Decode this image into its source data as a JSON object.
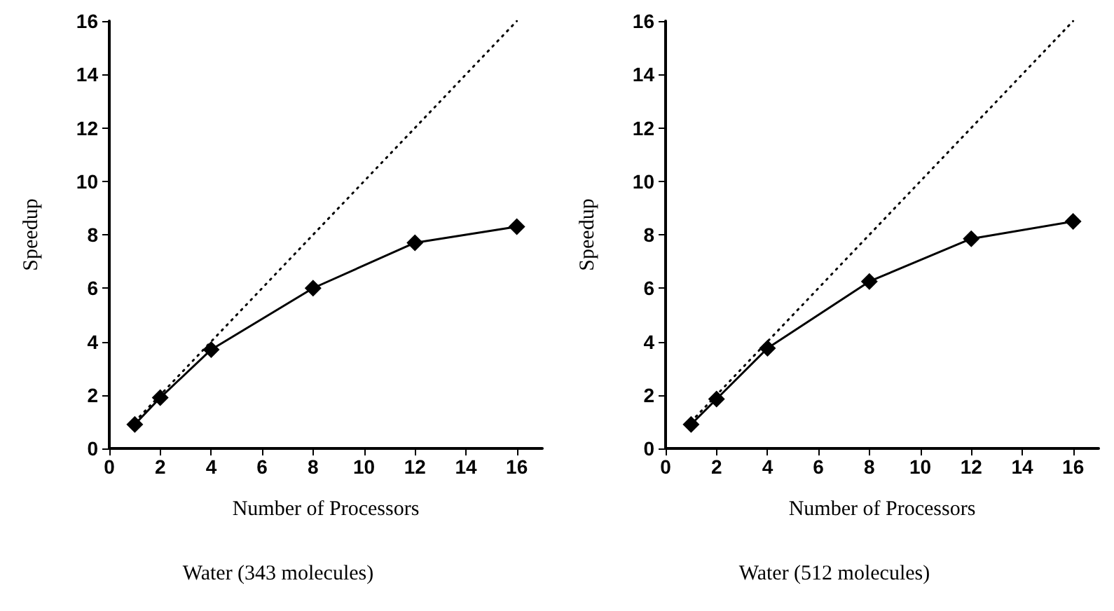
{
  "chart_data": [
    {
      "type": "line",
      "title": "Water (343 molecules)",
      "xlabel": "Number of Processors",
      "ylabel": "Speedup",
      "xlim": [
        0,
        17
      ],
      "xticks": [
        0,
        2,
        4,
        6,
        8,
        10,
        12,
        14,
        16
      ],
      "ylim": [
        0,
        16
      ],
      "yticks": [
        0,
        2,
        4,
        6,
        8,
        10,
        12,
        14,
        16
      ],
      "series": [
        {
          "color": "#000000",
          "x": [
            1,
            2,
            4,
            8,
            12,
            16
          ],
          "values": [
            0.9,
            1.9,
            3.7,
            6.0,
            7.7,
            8.3
          ],
          "marker": "diamond",
          "line_style": "solid"
        },
        {
          "color": "#000000",
          "x": [
            1,
            16
          ],
          "values": [
            1,
            16
          ],
          "marker": "none",
          "line_style": "dotted"
        }
      ]
    },
    {
      "type": "line",
      "title": "Water (512 molecules)",
      "xlabel": "Number of Processors",
      "ylabel": "Speedup",
      "xlim": [
        0,
        17
      ],
      "xticks": [
        0,
        2,
        4,
        6,
        8,
        10,
        12,
        14,
        16
      ],
      "ylim": [
        0,
        16
      ],
      "yticks": [
        0,
        2,
        4,
        6,
        8,
        10,
        12,
        14,
        16
      ],
      "series": [
        {
          "color": "#000000",
          "x": [
            1,
            2,
            4,
            8,
            12,
            16
          ],
          "values": [
            0.9,
            1.85,
            3.75,
            6.25,
            7.85,
            8.5
          ],
          "marker": "diamond",
          "line_style": "solid"
        },
        {
          "color": "#000000",
          "x": [
            1,
            16
          ],
          "values": [
            1,
            16
          ],
          "marker": "none",
          "line_style": "dotted"
        }
      ]
    }
  ]
}
